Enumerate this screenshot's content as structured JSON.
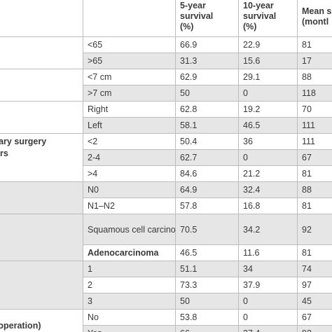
{
  "header": {
    "five_year": "5-year survival (%)",
    "ten_year": "10-year survival (%)",
    "mean": "Mean s (montl"
  },
  "rows": [
    {
      "var": "",
      "cat": "<65",
      "five": "66.9",
      "ten": "22.9",
      "mean": "81"
    },
    {
      "var": "",
      "cat": ">65",
      "five": "31.3",
      "ten": "15.6",
      "mean": "17"
    },
    {
      "var": "",
      "cat": "<7 cm",
      "five": "62.9",
      "ten": "29.1",
      "mean": "88"
    },
    {
      "var": "",
      "cat": ">7 cm",
      "five": "50",
      "ten": "0",
      "mean": "118"
    },
    {
      "var": "",
      "cat": "Right",
      "five": "62.8",
      "ten": "19.2",
      "mean": "70"
    },
    {
      "var": "",
      "cat": "Left",
      "five": "58.1",
      "ten": "46.5",
      "mean": "111"
    },
    {
      "var": "primary surgery",
      "cat": "<2",
      "five": "50.4",
      "ten": "36",
      "mean": "111"
    },
    {
      "var": "ars",
      "cat": "2-4",
      "five": "62.7",
      "ten": "0",
      "mean": "67"
    },
    {
      "var": "",
      "cat": ">4",
      "five": "84.6",
      "ten": "21.2",
      "mean": "81"
    },
    {
      "var": "",
      "cat": "N0",
      "five": "64.9",
      "ten": "32.4",
      "mean": "88"
    },
    {
      "var": "",
      "cat": "N1–N2",
      "five": "57.8",
      "ten": "16.8",
      "mean": "81"
    },
    {
      "var": "",
      "cat": "Squamous cell carcinoma",
      "five": "70.5",
      "ten": "34.2",
      "mean": "92"
    },
    {
      "var": "",
      "cat": "Adenocarcinoma",
      "five": "46.5",
      "ten": "11.6",
      "mean": "81"
    },
    {
      "var": "",
      "cat": "1",
      "five": "51.1",
      "ten": "34",
      "mean": "74"
    },
    {
      "var": "",
      "cat": "2",
      "five": "73.3",
      "ten": "37.9",
      "mean": "97"
    },
    {
      "var": "",
      "cat": "3",
      "five": "50",
      "ten": "0",
      "mean": "45"
    },
    {
      "var": "ond operation)",
      "cat": "No",
      "five": "53.8",
      "ten": "0",
      "mean": "67"
    },
    {
      "var": "",
      "cat": "Yes",
      "five": "66",
      "ten": "27.4",
      "mean": "93"
    }
  ]
}
